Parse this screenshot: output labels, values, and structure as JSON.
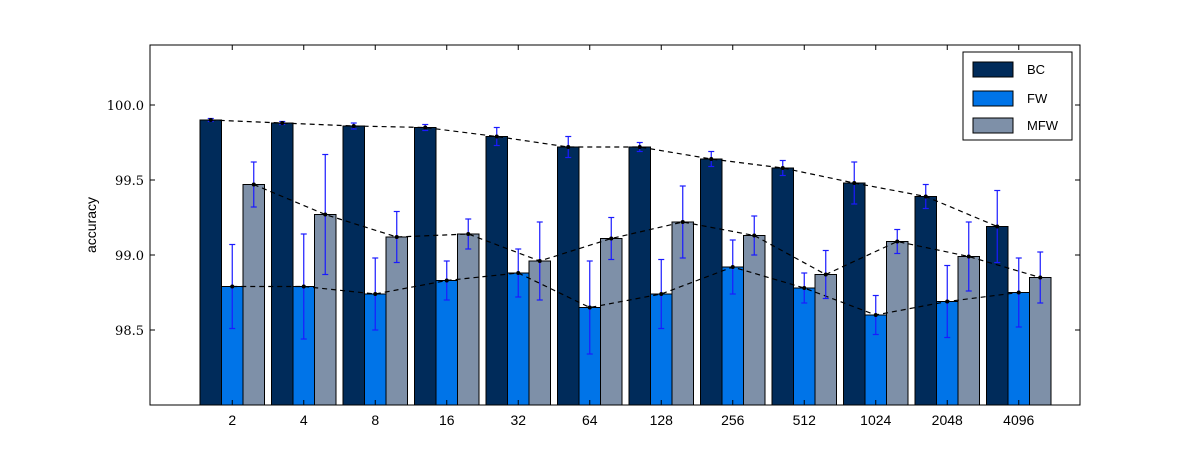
{
  "chart_data": {
    "type": "bar",
    "title": "",
    "xlabel": "",
    "ylabel": "accuracy",
    "ylim": [
      98.0,
      100.4
    ],
    "yticks": [
      98.5,
      99.0,
      99.5,
      100.0
    ],
    "ytick_labels": [
      "98.5",
      "99.0",
      "99.5",
      "100.0"
    ],
    "categories": [
      "2",
      "4",
      "8",
      "16",
      "32",
      "64",
      "128",
      "256",
      "512",
      "1024",
      "2048",
      "4096"
    ],
    "legend_position": "top-right",
    "grid": false,
    "series": [
      {
        "name": "BC",
        "color": "#002b5a",
        "values": [
          99.9,
          99.88,
          99.86,
          99.85,
          99.79,
          99.72,
          99.72,
          99.64,
          99.58,
          99.48,
          99.39,
          99.19
        ],
        "errors": [
          0.01,
          0.01,
          0.02,
          0.02,
          0.06,
          0.07,
          0.03,
          0.05,
          0.05,
          0.14,
          0.08,
          0.24
        ]
      },
      {
        "name": "FW",
        "color": "#0074e8",
        "values": [
          98.79,
          98.79,
          98.74,
          98.83,
          98.88,
          98.65,
          98.74,
          98.92,
          98.78,
          98.6,
          98.69,
          98.75
        ],
        "errors": [
          0.28,
          0.35,
          0.24,
          0.13,
          0.16,
          0.31,
          0.23,
          0.18,
          0.1,
          0.13,
          0.24,
          0.23
        ]
      },
      {
        "name": "MFW",
        "color": "#7e90a8",
        "values": [
          99.47,
          99.27,
          99.12,
          99.14,
          98.96,
          99.11,
          99.22,
          99.13,
          98.87,
          99.09,
          98.99,
          98.85
        ],
        "errors": [
          0.15,
          0.4,
          0.17,
          0.1,
          0.26,
          0.14,
          0.24,
          0.13,
          0.16,
          0.08,
          0.23,
          0.17
        ]
      }
    ]
  }
}
